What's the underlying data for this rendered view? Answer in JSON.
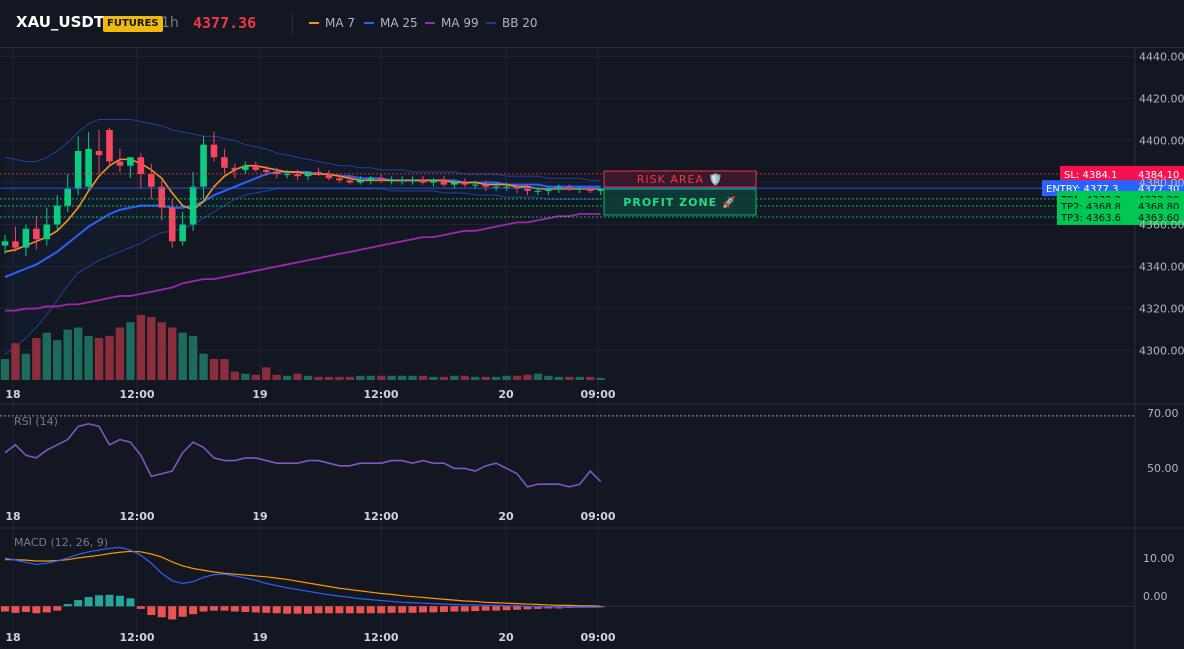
{
  "header": {
    "symbol": "XAU_USDT",
    "badge": "FUTURES",
    "timeframe": "1h",
    "price": "4377.36",
    "legend": [
      {
        "label": "MA 7",
        "color": "#f7931a"
      },
      {
        "label": "MA 25",
        "color": "#2962ff"
      },
      {
        "label": "MA 99",
        "color": "#9c27b0"
      },
      {
        "label": "BB 20",
        "color": "#1e3a8a"
      }
    ]
  },
  "price_axis": [
    "4440.00",
    "4420.00",
    "4400.00",
    "4380.00",
    "4360.00",
    "4340.00",
    "4320.00",
    "4300.00"
  ],
  "levels": {
    "sl": {
      "label": "SL: 4384.1",
      "axis": "4384.10",
      "color": "#f23645"
    },
    "entry": {
      "label": "ENTRY: 4377.3",
      "axis": "4377.30",
      "color": "#2962ff"
    },
    "tp1": {
      "label": "TP1: 4372.2",
      "axis": "4372.20",
      "color": "#00e676"
    },
    "tp2": {
      "label": "TP2: 4368.8",
      "axis": "4368.80",
      "color": "#00e676"
    },
    "tp3": {
      "label": "TP3: 4363.6",
      "axis": "4363.60",
      "color": "#00e676"
    }
  },
  "zones": {
    "risk": "RISK AREA 🛡️",
    "profit": "PROFIT ZONE 🚀"
  },
  "time_axis": [
    "18",
    "12:00",
    "19",
    "12:00",
    "20",
    "09:00"
  ],
  "rsi": {
    "title": "RSI (14)",
    "levels": [
      "70.00",
      "50.00"
    ]
  },
  "macd": {
    "title": "MACD (12, 26, 9)",
    "levels": [
      "10.00",
      "0.00"
    ]
  },
  "chart_data": [
    {
      "type": "candlestick",
      "title": "XAU_USDT 1h",
      "x": [
        "18 00:00",
        "18 01:00",
        "18 02:00",
        "18 03:00",
        "18 04:00",
        "18 05:00",
        "18 06:00",
        "18 07:00",
        "18 08:00",
        "18 09:00",
        "18 10:00",
        "18 11:00",
        "18 12:00",
        "18 13:00",
        "18 14:00",
        "18 15:00",
        "18 16:00",
        "18 17:00",
        "18 18:00",
        "18 19:00",
        "18 20:00",
        "18 21:00",
        "18 22:00",
        "18 23:00",
        "19 00:00",
        "19 01:00",
        "19 02:00",
        "19 03:00",
        "19 04:00",
        "19 05:00",
        "19 06:00",
        "19 07:00",
        "19 08:00",
        "19 09:00",
        "19 10:00",
        "19 11:00",
        "19 12:00",
        "19 13:00",
        "19 14:00",
        "19 15:00",
        "19 16:00",
        "19 17:00",
        "19 18:00",
        "19 19:00",
        "19 20:00",
        "19 21:00",
        "19 22:00",
        "19 23:00",
        "20 00:00",
        "20 01:00",
        "20 02:00",
        "20 03:00",
        "20 04:00",
        "20 05:00",
        "20 06:00",
        "20 07:00",
        "20 08:00",
        "20 09:00"
      ],
      "open": [
        4350,
        4352,
        4349,
        4358,
        4353,
        4360,
        4369,
        4377,
        4378,
        4395,
        4405,
        4390,
        4388,
        4392,
        4384,
        4378,
        4368,
        4352,
        4360,
        4378,
        4398,
        4392,
        4387,
        4386,
        4388,
        4386,
        4385,
        4384,
        4384,
        4383,
        4385,
        4384,
        4382,
        4381,
        4380,
        4381,
        4382,
        4381,
        4381,
        4381,
        4381,
        4380,
        4381,
        4379,
        4380,
        4379,
        4379,
        4378,
        4378,
        4378,
        4377,
        4376,
        4376,
        4377,
        4378,
        4377,
        4377,
        4376
      ],
      "high": [
        4355,
        4359,
        4360,
        4364,
        4368,
        4374,
        4384,
        4402,
        4404,
        4405,
        4406,
        4396,
        4392,
        4394,
        4389,
        4381,
        4372,
        4366,
        4385,
        4402,
        4404,
        4396,
        4389,
        4390,
        4390,
        4388,
        4387,
        4386,
        4386,
        4385,
        4387,
        4386,
        4384,
        4383,
        4383,
        4383,
        4384,
        4383,
        4383,
        4383,
        4383,
        4382,
        4383,
        4381,
        4382,
        4381,
        4381,
        4380,
        4380,
        4379,
        4379,
        4378,
        4378,
        4379,
        4379,
        4378,
        4378,
        4377
      ],
      "low": [
        4346,
        4347,
        4345,
        4348,
        4350,
        4357,
        4366,
        4374,
        4376,
        4384,
        4388,
        4385,
        4382,
        4377,
        4372,
        4362,
        4349,
        4350,
        4357,
        4372,
        4390,
        4384,
        4382,
        4384,
        4385,
        4383,
        4382,
        4382,
        4381,
        4381,
        4383,
        4381,
        4380,
        4379,
        4379,
        4379,
        4380,
        4379,
        4379,
        4379,
        4379,
        4378,
        4378,
        4377,
        4378,
        4377,
        4376,
        4376,
        4376,
        4375,
        4374,
        4374,
        4374,
        4375,
        4376,
        4375,
        4375,
        4374
      ],
      "close": [
        4352,
        4349,
        4358,
        4353,
        4360,
        4369,
        4377,
        4395,
        4396,
        4393,
        4390,
        4388,
        4392,
        4384,
        4378,
        4368,
        4352,
        4360,
        4378,
        4398,
        4392,
        4387,
        4386,
        4388,
        4386,
        4385,
        4384,
        4384,
        4383,
        4385,
        4384,
        4382,
        4381,
        4380,
        4381,
        4382,
        4381,
        4381,
        4381,
        4381,
        4380,
        4381,
        4379,
        4380,
        4379,
        4379,
        4378,
        4378,
        4378,
        4377,
        4376,
        4376,
        4377,
        4378,
        4377,
        4377,
        4376,
        4377
      ],
      "ma7": [
        4347,
        4348,
        4350,
        4352,
        4354,
        4357,
        4362,
        4368,
        4376,
        4383,
        4388,
        4391,
        4391,
        4389,
        4386,
        4382,
        4375,
        4369,
        4367,
        4371,
        4378,
        4383,
        4386,
        4388,
        4388,
        4387,
        4386,
        4385,
        4385,
        4384,
        4384,
        4384,
        4383,
        4382,
        4381,
        4381,
        4381,
        4381,
        4381,
        4381,
        4381,
        4381,
        4381,
        4380,
        4380,
        4380,
        4379,
        4379,
        4379,
        4378,
        4378,
        4377,
        4377,
        4377,
        4377,
        4377,
        4377,
        4377
      ],
      "ma25": [
        4335,
        4337,
        4339,
        4341,
        4344,
        4347,
        4351,
        4355,
        4359,
        4362,
        4365,
        4367,
        4368,
        4369,
        4369,
        4369,
        4368,
        4368,
        4369,
        4371,
        4374,
        4376,
        4378,
        4380,
        4382,
        4384,
        4385,
        4385,
        4385,
        4385,
        4384,
        4384,
        4383,
        4383,
        4382,
        4382,
        4382,
        4381,
        4381,
        4381,
        4381,
        4381,
        4381,
        4381,
        4380,
        4380,
        4380,
        4380,
        4379,
        4379,
        4379,
        4379,
        4378,
        4378,
        4378,
        4378,
        4378,
        4378
      ],
      "ma99": [
        4319,
        4319,
        4320,
        4320,
        4321,
        4321,
        4322,
        4322,
        4323,
        4324,
        4325,
        4326,
        4326,
        4327,
        4328,
        4329,
        4330,
        4332,
        4333,
        4334,
        4334,
        4335,
        4336,
        4337,
        4338,
        4339,
        4340,
        4341,
        4342,
        4343,
        4344,
        4345,
        4346,
        4347,
        4348,
        4349,
        4350,
        4351,
        4352,
        4353,
        4354,
        4354,
        4355,
        4356,
        4357,
        4357,
        4358,
        4359,
        4360,
        4361,
        4361,
        4362,
        4363,
        4364,
        4364,
        4365,
        4365,
        4365
      ],
      "bb_upper": [
        4392,
        4391,
        4390,
        4390,
        4392,
        4395,
        4399,
        4404,
        4408,
        4410,
        4410,
        4410,
        4410,
        4409,
        4408,
        4407,
        4405,
        4404,
        4403,
        4402,
        4402,
        4401,
        4400,
        4398,
        4397,
        4396,
        4394,
        4393,
        4392,
        4391,
        4390,
        4389,
        4388,
        4388,
        4387,
        4387,
        4386,
        4386,
        4386,
        4385,
        4385,
        4385,
        4385,
        4385,
        4384,
        4384,
        4384,
        4384,
        4383,
        4383,
        4383,
        4383,
        4382,
        4382,
        4382,
        4382,
        4381,
        4381
      ],
      "bb_lower": [
        4298,
        4302,
        4306,
        4311,
        4317,
        4324,
        4331,
        4337,
        4340,
        4343,
        4345,
        4347,
        4349,
        4351,
        4354,
        4356,
        4357,
        4358,
        4360,
        4363,
        4366,
        4369,
        4372,
        4374,
        4375,
        4376,
        4377,
        4377,
        4377,
        4377,
        4377,
        4377,
        4377,
        4377,
        4377,
        4377,
        4377,
        4376,
        4376,
        4376,
        4376,
        4376,
        4375,
        4375,
        4375,
        4374,
        4374,
        4374,
        4373,
        4373,
        4373,
        4373,
        4372,
        4372,
        4372,
        4372,
        4372,
        4372
      ],
      "volume": [
        20,
        35,
        25,
        40,
        45,
        38,
        48,
        50,
        42,
        40,
        42,
        50,
        55,
        62,
        60,
        55,
        50,
        45,
        42,
        25,
        20,
        20,
        8,
        6,
        5,
        12,
        5,
        4,
        6,
        4,
        3,
        3,
        3,
        3,
        4,
        4,
        4,
        4,
        4,
        4,
        4,
        3,
        3,
        4,
        4,
        3,
        3,
        3,
        4,
        4,
        5,
        6,
        4,
        3,
        3,
        3,
        3,
        2
      ],
      "ylabel": "",
      "ylim": [
        4286,
        4444
      ]
    },
    {
      "type": "line",
      "title": "RSI (14)",
      "values": [
        56,
        59,
        55,
        54,
        57,
        59,
        61,
        66,
        67,
        66,
        59,
        61,
        60,
        55,
        47,
        48,
        49,
        56,
        60,
        58,
        54,
        53,
        53,
        54,
        54,
        53,
        52,
        52,
        52,
        53,
        53,
        52,
        51,
        51,
        52,
        52,
        52,
        53,
        53,
        52,
        53,
        52,
        52,
        50,
        50,
        49,
        51,
        52,
        50,
        48,
        43,
        44,
        44,
        44,
        43,
        44,
        49,
        45
      ],
      "ylim": [
        38,
        73
      ]
    },
    {
      "type": "line",
      "title": "MACD (12, 26, 9)",
      "macd": [
        11.0,
        10.5,
        10.0,
        9.5,
        9.8,
        10.3,
        11.0,
        11.8,
        12.4,
        12.8,
        13.2,
        13.4,
        12.8,
        11.6,
        9.8,
        7.5,
        5.8,
        5.2,
        5.6,
        6.6,
        7.2,
        7.3,
        6.9,
        6.4,
        5.9,
        5.2,
        4.7,
        4.2,
        3.8,
        3.4,
        3.0,
        2.6,
        2.3,
        2.0,
        1.7,
        1.5,
        1.3,
        1.1,
        0.9,
        0.8,
        0.7,
        0.6,
        0.5,
        0.4,
        0.3,
        0.3,
        0.2,
        0.2,
        0.1,
        0.1,
        0.0,
        -0.1,
        -0.1,
        -0.2,
        -0.2,
        -0.2,
        -0.2,
        -0.2
      ],
      "signal": [
        10.6,
        10.6,
        10.5,
        10.3,
        10.3,
        10.4,
        10.6,
        11.0,
        11.3,
        11.6,
        12.0,
        12.3,
        12.5,
        12.4,
        11.9,
        11.2,
        10.1,
        9.2,
        8.6,
        8.2,
        7.8,
        7.5,
        7.3,
        7.1,
        6.9,
        6.7,
        6.4,
        6.1,
        5.7,
        5.3,
        4.9,
        4.5,
        4.1,
        3.8,
        3.5,
        3.2,
        2.9,
        2.7,
        2.4,
        2.2,
        2.0,
        1.8,
        1.6,
        1.4,
        1.2,
        1.1,
        0.9,
        0.8,
        0.7,
        0.6,
        0.5,
        0.4,
        0.3,
        0.2,
        0.2,
        0.1,
        0.1,
        0.0
      ],
      "histogram": [
        -1.2,
        -1.5,
        -1.3,
        -1.6,
        -1.4,
        -1.0,
        0.5,
        1.4,
        2.1,
        2.5,
        2.6,
        2.4,
        1.8,
        -0.6,
        -2.0,
        -2.5,
        -3.0,
        -2.4,
        -1.8,
        -1.2,
        -1.0,
        -1.0,
        -1.2,
        -1.3,
        -1.4,
        -1.5,
        -1.6,
        -1.7,
        -1.7,
        -1.7,
        -1.6,
        -1.6,
        -1.6,
        -1.6,
        -1.6,
        -1.6,
        -1.6,
        -1.5,
        -1.5,
        -1.5,
        -1.4,
        -1.4,
        -1.3,
        -1.2,
        -1.2,
        -1.1,
        -1.0,
        -1.0,
        -0.9,
        -0.8,
        -0.7,
        -0.6,
        -0.5,
        -0.5,
        -0.4,
        -0.3,
        -0.3,
        -0.2
      ],
      "ylim": [
        -4.5,
        16
      ]
    }
  ]
}
